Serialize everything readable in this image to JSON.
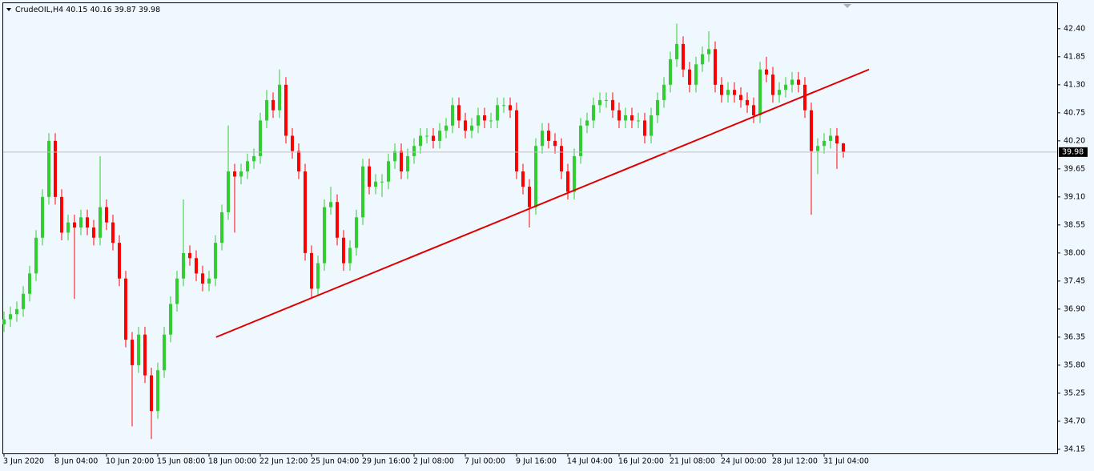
{
  "chart_data": {
    "type": "candlestick",
    "symbol": "CrudeOIL,H4",
    "categories": [
      "3 Jun 2020",
      null,
      null,
      null,
      null,
      null,
      null,
      null,
      "8 Jun 04:00",
      null,
      null,
      null,
      null,
      null,
      null,
      null,
      "10 Jun 20:00",
      null,
      null,
      null,
      null,
      null,
      null,
      null,
      "15 Jun 08:00",
      null,
      null,
      null,
      null,
      null,
      null,
      null,
      "18 Jun 00:00",
      null,
      null,
      null,
      null,
      null,
      null,
      null,
      "22 Jun 12:00",
      null,
      null,
      null,
      null,
      null,
      null,
      null,
      "25 Jun 04:00",
      null,
      null,
      null,
      null,
      null,
      null,
      null,
      "29 Jun 16:00",
      null,
      null,
      null,
      null,
      null,
      null,
      null,
      "2 Jul 08:00",
      null,
      null,
      null,
      null,
      null,
      null,
      null,
      "7 Jul 00:00",
      null,
      null,
      null,
      null,
      null,
      null,
      null,
      "9 Jul 16:00",
      null,
      null,
      null,
      null,
      null,
      null,
      null,
      "14 Jul 04:00",
      null,
      null,
      null,
      null,
      null,
      null,
      null,
      "16 Jul 20:00",
      null,
      null,
      null,
      null,
      null,
      null,
      null,
      "21 Jul 08:00",
      null,
      null,
      null,
      null,
      null,
      null,
      null,
      "24 Jul 00:00",
      null,
      null,
      null,
      null,
      null,
      null,
      null,
      "28 Jul 12:00",
      null,
      null,
      null,
      null,
      null,
      null,
      null,
      "31 Jul 04:00",
      null,
      null,
      null
    ],
    "open": [
      36.6,
      36.7,
      36.8,
      36.9,
      37.2,
      37.6,
      38.3,
      39.1,
      40.2,
      39.1,
      38.4,
      38.6,
      38.5,
      38.7,
      38.5,
      38.3,
      38.9,
      38.6,
      38.2,
      37.5,
      36.3,
      35.8,
      36.4,
      35.6,
      34.9,
      35.7,
      36.4,
      37.0,
      37.5,
      38.0,
      37.9,
      37.6,
      37.4,
      37.5,
      38.2,
      38.8,
      39.6,
      39.5,
      39.6,
      39.8,
      39.9,
      40.6,
      41.0,
      40.8,
      41.3,
      40.3,
      40.0,
      39.6,
      38.0,
      37.3,
      37.8,
      38.9,
      39.0,
      38.3,
      37.8,
      38.1,
      38.7,
      39.7,
      39.3,
      39.4,
      39.4,
      39.8,
      40.0,
      39.6,
      39.9,
      40.1,
      40.3,
      40.3,
      40.2,
      40.4,
      40.5,
      40.9,
      40.6,
      40.4,
      40.5,
      40.7,
      40.6,
      40.6,
      40.9,
      40.9,
      40.8,
      39.6,
      39.3,
      38.9,
      40.1,
      40.4,
      40.2,
      40.1,
      39.6,
      39.2,
      39.9,
      40.5,
      40.6,
      40.9,
      41.0,
      41.0,
      40.8,
      40.6,
      40.7,
      40.6,
      40.6,
      40.3,
      40.7,
      41.0,
      41.3,
      41.8,
      42.1,
      41.6,
      41.3,
      41.7,
      41.9,
      42.0,
      41.3,
      41.1,
      41.2,
      41.1,
      41.0,
      40.9,
      40.7,
      41.6,
      41.5,
      41.1,
      41.2,
      41.3,
      41.4,
      41.3,
      40.8,
      40.0,
      40.1,
      40.2,
      40.3,
      40.15
    ],
    "high": [
      36.85,
      36.95,
      37.05,
      37.35,
      37.75,
      38.45,
      39.25,
      40.35,
      40.35,
      39.25,
      38.75,
      38.75,
      38.85,
      38.85,
      38.65,
      39.9,
      39.05,
      38.75,
      38.35,
      37.65,
      36.45,
      36.55,
      36.55,
      35.75,
      35.85,
      36.55,
      37.15,
      37.65,
      39.05,
      38.15,
      38.05,
      37.75,
      37.65,
      38.35,
      38.95,
      40.5,
      39.75,
      39.75,
      39.95,
      40.05,
      40.75,
      41.2,
      41.15,
      41.6,
      41.45,
      40.45,
      40.15,
      39.75,
      38.15,
      37.95,
      39.05,
      39.3,
      39.15,
      38.45,
      38.25,
      38.85,
      39.85,
      39.85,
      39.55,
      39.55,
      39.95,
      40.15,
      40.15,
      40.05,
      40.25,
      40.45,
      40.45,
      40.45,
      40.55,
      40.65,
      41.05,
      41.05,
      40.75,
      40.65,
      40.85,
      40.85,
      40.75,
      41.05,
      41.05,
      41.05,
      40.95,
      39.75,
      39.45,
      40.25,
      40.55,
      40.55,
      40.35,
      40.25,
      39.75,
      40.05,
      40.65,
      40.75,
      41.05,
      41.15,
      41.15,
      41.15,
      40.95,
      40.85,
      40.85,
      40.75,
      40.75,
      40.85,
      41.15,
      41.45,
      41.95,
      42.5,
      42.25,
      41.75,
      41.85,
      42.05,
      42.35,
      42.15,
      41.45,
      41.35,
      41.35,
      41.25,
      41.15,
      41.05,
      41.75,
      41.85,
      41.65,
      41.35,
      41.45,
      41.55,
      41.55,
      41.45,
      40.95,
      40.25,
      40.35,
      40.45,
      40.45,
      40.16
    ],
    "low": [
      36.45,
      36.55,
      36.65,
      36.75,
      37.05,
      37.45,
      38.15,
      38.95,
      38.95,
      38.25,
      38.25,
      37.1,
      38.35,
      38.35,
      38.15,
      38.15,
      38.45,
      38.05,
      37.35,
      36.15,
      34.6,
      35.65,
      35.45,
      34.35,
      34.75,
      35.55,
      36.25,
      36.85,
      37.35,
      37.75,
      37.45,
      37.25,
      37.25,
      37.35,
      38.05,
      38.65,
      38.4,
      39.35,
      39.45,
      39.65,
      39.75,
      40.45,
      40.65,
      40.65,
      40.15,
      39.85,
      39.45,
      37.85,
      37.1,
      37.15,
      37.65,
      38.75,
      38.15,
      37.65,
      37.65,
      37.95,
      38.55,
      39.15,
      39.15,
      39.1,
      39.25,
      39.65,
      39.45,
      39.45,
      39.75,
      39.95,
      40.15,
      40.05,
      40.05,
      40.25,
      40.35,
      40.45,
      40.25,
      40.25,
      40.35,
      40.45,
      40.45,
      40.45,
      40.75,
      40.65,
      39.45,
      39.15,
      38.5,
      38.75,
      39.95,
      40.05,
      39.95,
      39.45,
      39.05,
      39.05,
      39.75,
      40.35,
      40.45,
      40.75,
      40.85,
      40.65,
      40.45,
      40.45,
      40.45,
      40.45,
      40.15,
      40.15,
      40.55,
      40.85,
      41.15,
      41.65,
      41.45,
      41.15,
      41.15,
      41.55,
      41.75,
      41.15,
      40.95,
      40.95,
      40.95,
      40.85,
      40.75,
      40.55,
      40.55,
      41.35,
      40.95,
      40.95,
      41.05,
      41.15,
      41.15,
      40.65,
      38.75,
      39.55,
      39.95,
      40.05,
      39.65,
      39.87
    ],
    "close": [
      36.7,
      36.8,
      36.9,
      37.2,
      37.6,
      38.3,
      39.1,
      40.2,
      39.1,
      38.4,
      38.6,
      38.5,
      38.7,
      38.5,
      38.3,
      38.9,
      38.6,
      38.2,
      37.5,
      36.3,
      35.8,
      36.4,
      35.6,
      34.9,
      35.7,
      36.4,
      37.0,
      37.5,
      38.0,
      37.9,
      37.6,
      37.4,
      37.5,
      38.2,
      38.8,
      39.6,
      39.5,
      39.6,
      39.8,
      39.9,
      40.6,
      41.0,
      40.8,
      41.3,
      40.3,
      40.0,
      39.6,
      38.0,
      37.3,
      37.8,
      38.9,
      39.0,
      38.3,
      37.8,
      38.1,
      38.7,
      39.7,
      39.3,
      39.4,
      39.4,
      39.8,
      40.0,
      39.6,
      39.9,
      40.1,
      40.3,
      40.3,
      40.2,
      40.4,
      40.5,
      40.9,
      40.6,
      40.4,
      40.5,
      40.7,
      40.6,
      40.6,
      40.9,
      40.9,
      40.8,
      39.6,
      39.3,
      38.9,
      40.1,
      40.4,
      40.2,
      40.1,
      39.6,
      39.2,
      39.9,
      40.5,
      40.6,
      40.9,
      41.0,
      41.0,
      40.8,
      40.6,
      40.7,
      40.6,
      40.6,
      40.3,
      40.7,
      41.0,
      41.3,
      41.8,
      42.1,
      41.6,
      41.3,
      41.7,
      41.9,
      42.0,
      41.3,
      41.1,
      41.2,
      41.1,
      41.0,
      40.9,
      40.7,
      41.6,
      41.5,
      41.1,
      41.2,
      41.3,
      41.4,
      41.3,
      40.8,
      40.0,
      40.1,
      40.2,
      40.3,
      40.15,
      39.98
    ],
    "up_color": "#32cd32",
    "down_color": "#ff0000",
    "ylim": [
      34.07,
      42.9
    ],
    "yticks": [
      34.15,
      {
        "value": 34.7,
        "label": "34.70"
      },
      35.25,
      {
        "value": 35.8,
        "label": "35.80"
      },
      36.35,
      {
        "value": 36.9,
        "label": "36.90"
      },
      37.45,
      {
        "value": 38,
        "label": "38.00"
      },
      38.55,
      {
        "value": 39.1,
        "label": "39.10"
      },
      39.65,
      {
        "value": 40.2,
        "label": "40.20"
      },
      40.75,
      {
        "value": 41.3,
        "label": "41.30"
      },
      41.85,
      {
        "value": 42.4,
        "label": "42.40"
      }
    ],
    "trendline": {
      "x": [
        33.1,
        135
      ],
      "y": [
        36.35,
        41.6
      ],
      "color": "#e00000"
    },
    "grid": false
  }
}
